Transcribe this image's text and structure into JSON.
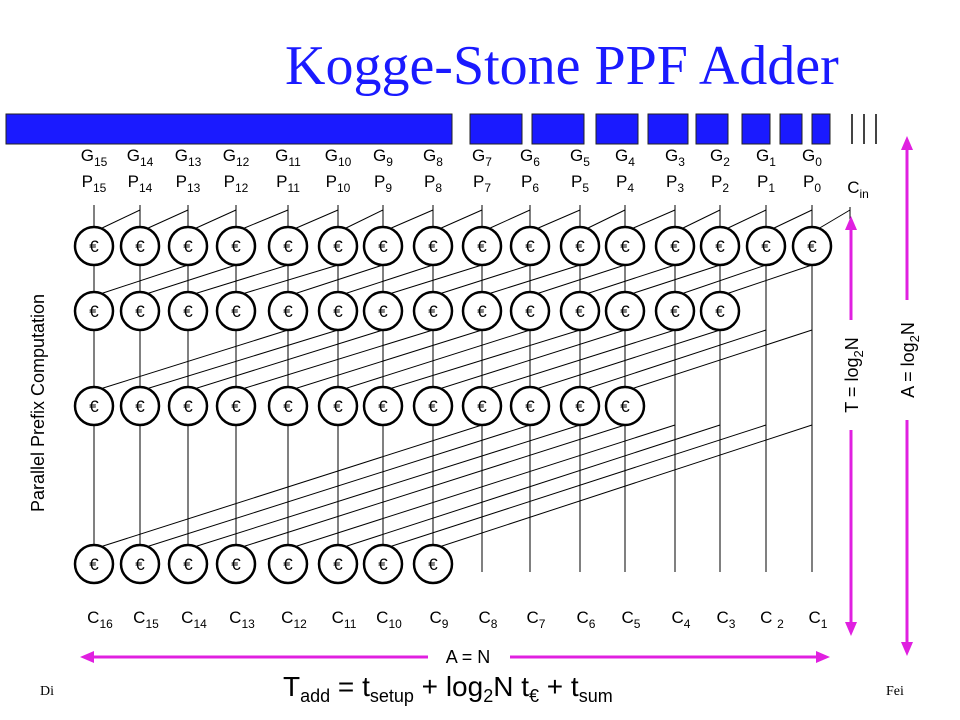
{
  "slide": {
    "title": "Kogge-Stone PPF Adder",
    "footer_left": "Di",
    "footer_right": "Fei"
  },
  "diagram": {
    "inputs": [
      {
        "g": "G",
        "g_sub": "15",
        "p": "P",
        "p_sub": "15"
      },
      {
        "g": "G",
        "g_sub": "14",
        "p": "P",
        "p_sub": "14"
      },
      {
        "g": "G",
        "g_sub": "13",
        "p": "P",
        "p_sub": "13"
      },
      {
        "g": "G",
        "g_sub": "12",
        "p": "P",
        "p_sub": "12"
      },
      {
        "g": "G",
        "g_sub": "11",
        "p": "P",
        "p_sub": "11"
      },
      {
        "g": "G",
        "g_sub": "10",
        "p": "P",
        "p_sub": "10"
      },
      {
        "g": "G",
        "g_sub": "9",
        "p": "P",
        "p_sub": "9"
      },
      {
        "g": "G",
        "g_sub": "8",
        "p": "P",
        "p_sub": "8"
      },
      {
        "g": "G",
        "g_sub": "7",
        "p": "P",
        "p_sub": "7"
      },
      {
        "g": "G",
        "g_sub": "6",
        "p": "P",
        "p_sub": "6"
      },
      {
        "g": "G",
        "g_sub": "5",
        "p": "P",
        "p_sub": "5"
      },
      {
        "g": "G",
        "g_sub": "4",
        "p": "P",
        "p_sub": "4"
      },
      {
        "g": "G",
        "g_sub": "3",
        "p": "P",
        "p_sub": "3"
      },
      {
        "g": "G",
        "g_sub": "2",
        "p": "P",
        "p_sub": "2"
      },
      {
        "g": "G",
        "g_sub": "1",
        "p": "P",
        "p_sub": "1"
      },
      {
        "g": "G",
        "g_sub": "0",
        "p": "P",
        "p_sub": "0"
      }
    ],
    "cin": {
      "main": "C",
      "sub": "in"
    },
    "outputs": [
      {
        "main": "C",
        "sub": "16"
      },
      {
        "main": "C",
        "sub": "15"
      },
      {
        "main": "C",
        "sub": "14"
      },
      {
        "main": "C",
        "sub": "13"
      },
      {
        "main": "C",
        "sub": "12"
      },
      {
        "main": "C",
        "sub": "11"
      },
      {
        "main": "C",
        "sub": "10"
      },
      {
        "main": "C",
        "sub": "9"
      },
      {
        "main": "C",
        "sub": "8"
      },
      {
        "main": "C",
        "sub": "7"
      },
      {
        "main": "C",
        "sub": "6"
      },
      {
        "main": "C",
        "sub": "5"
      },
      {
        "main": "C",
        "sub": "4"
      },
      {
        "main": "C",
        "sub": "3"
      },
      {
        "main": "C ",
        "sub": "2"
      },
      {
        "main": "C",
        "sub": "1"
      }
    ],
    "node_symbol": "€",
    "row_counts": [
      16,
      14,
      12,
      8
    ],
    "side_label": "Parallel Prefix Computation",
    "t_label": {
      "main": "T = log",
      "sub": "2",
      "tail": "N"
    },
    "a_label_right": {
      "main": "A = log",
      "sub": "2",
      "tail": "N"
    },
    "a_label_bottom": "A = N",
    "colors": {
      "title": "#1a1aff",
      "arrow": "#e020e0",
      "bar": "#1a1aff"
    }
  },
  "formula": {
    "t": "T",
    "t_sub": "add",
    "eq": " = t",
    "setup_sub": "setup",
    "mid": " + log",
    "log_sub": "2",
    "n": "N t",
    "euro_sub": "€",
    "plus": " + t",
    "sum_sub": "sum"
  }
}
